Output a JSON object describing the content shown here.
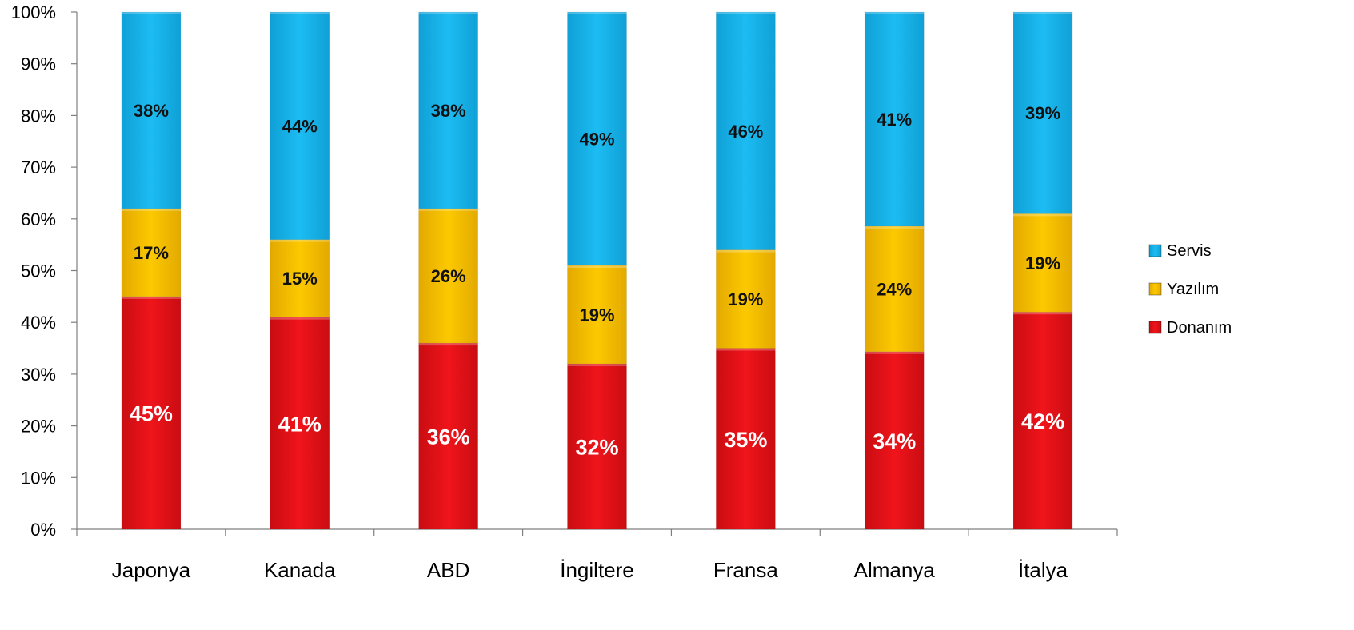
{
  "chart_data": {
    "type": "bar",
    "stacked": true,
    "percent_stacked": true,
    "categories": [
      "Japonya",
      "Kanada",
      "ABD",
      "İngiltere",
      "Fransa",
      "Almanya",
      "İtalya"
    ],
    "series": [
      {
        "name": "Donanım",
        "values": [
          45,
          41,
          36,
          32,
          35,
          34,
          42
        ],
        "labels": [
          "45%",
          "41%",
          "36%",
          "32%",
          "35%",
          "34%",
          "42%"
        ],
        "color": "#e8131a"
      },
      {
        "name": "Yazılım",
        "values": [
          17,
          15,
          26,
          19,
          19,
          24,
          19
        ],
        "labels": [
          "17%",
          "15%",
          "26%",
          "19%",
          "19%",
          "24%",
          "19%"
        ],
        "color": "#f7c200"
      },
      {
        "name": "Servis",
        "values": [
          38,
          44,
          38,
          49,
          46,
          41,
          39
        ],
        "labels": [
          "38%",
          "44%",
          "38%",
          "49%",
          "46%",
          "41%",
          "39%"
        ],
        "color": "#16b3ea"
      }
    ],
    "ylim": [
      0,
      100
    ],
    "yticks": [
      "0%",
      "10%",
      "20%",
      "30%",
      "40%",
      "50%",
      "60%",
      "70%",
      "80%",
      "90%",
      "100%"
    ],
    "legend": {
      "placement": "right",
      "order": [
        "Servis",
        "Yazılım",
        "Donanım"
      ]
    },
    "grid": false,
    "title": "",
    "xlabel": "",
    "ylabel": ""
  }
}
